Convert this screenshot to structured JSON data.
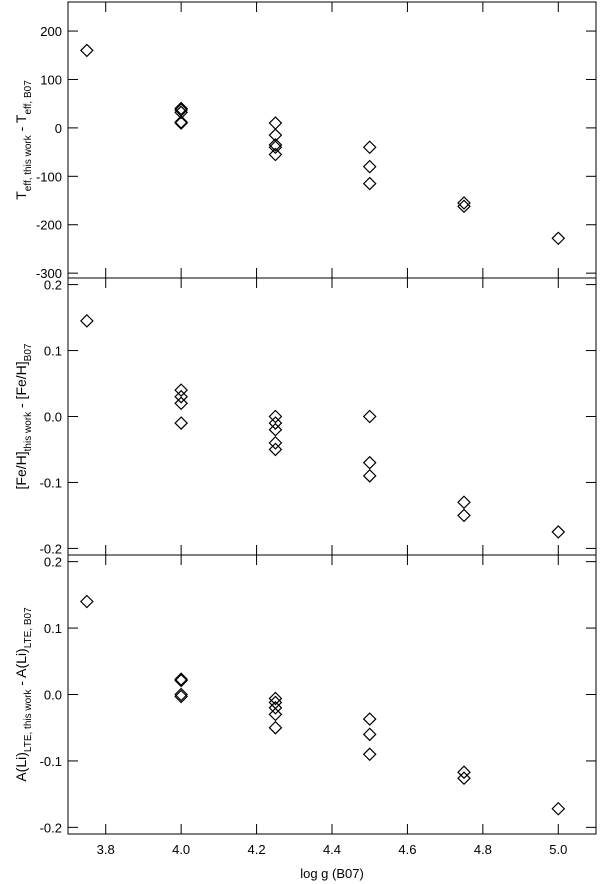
{
  "chart_data": [
    {
      "type": "scatter",
      "ylabel": [
        "T",
        "eff, this work",
        " - T",
        "eff, B07"
      ],
      "x": [
        3.75,
        4.0,
        4.0,
        4.0,
        4.0,
        4.0,
        4.25,
        4.25,
        4.25,
        4.25,
        4.25,
        4.5,
        4.5,
        4.5,
        4.75,
        4.75,
        5.0
      ],
      "values": [
        160,
        40,
        37,
        32,
        12,
        10,
        10,
        -15,
        -35,
        -40,
        -55,
        -40,
        -80,
        -115,
        -155,
        -162,
        -228
      ],
      "color": "#000000",
      "xlim": [
        3.7,
        5.1
      ],
      "xticks": [
        3.8,
        {
          "value": 4.0,
          "label": "4.0"
        },
        4.2,
        4.4,
        4.6,
        4.8,
        {
          "value": 5.0,
          "label": "5.0"
        }
      ],
      "ylim": [
        -310,
        260
      ],
      "yticks": [
        -300,
        -200,
        -100,
        0,
        100,
        200
      ]
    },
    {
      "type": "scatter",
      "ylabel": [
        "[Fe/H]",
        "this work",
        " - [Fe/H]",
        "B07"
      ],
      "x": [
        3.75,
        4.0,
        4.0,
        4.0,
        4.0,
        4.25,
        4.25,
        4.25,
        4.25,
        4.25,
        4.5,
        4.5,
        4.5,
        4.75,
        4.75,
        5.0
      ],
      "values": [
        0.145,
        0.04,
        0.03,
        0.02,
        -0.01,
        0.0,
        -0.01,
        -0.02,
        -0.04,
        -0.05,
        0.0,
        -0.07,
        -0.09,
        -0.13,
        -0.15,
        -0.175
      ],
      "color": "#000000",
      "xlim": [
        3.7,
        5.1
      ],
      "xticks": [
        3.8,
        {
          "value": 4.0,
          "label": "4.0"
        },
        4.2,
        4.4,
        4.6,
        4.8,
        {
          "value": 5.0,
          "label": "5.0"
        }
      ],
      "ylim": [
        -0.21,
        0.21
      ],
      "yticks": [
        -0.2,
        -0.1,
        {
          "value": 0,
          "label": "0.0"
        },
        0.1,
        0.2
      ]
    },
    {
      "type": "scatter",
      "ylabel": [
        "A(Li)",
        "LTE, this work",
        " - A(Li)",
        "LTE, B07"
      ],
      "xlabel": "log g (B07)",
      "x": [
        3.75,
        4.0,
        4.0,
        4.0,
        4.0,
        4.25,
        4.25,
        4.25,
        4.25,
        4.25,
        4.5,
        4.5,
        4.5,
        4.75,
        4.75,
        5.0
      ],
      "values": [
        0.14,
        0.023,
        0.021,
        0.0,
        -0.003,
        -0.006,
        -0.012,
        -0.02,
        -0.03,
        -0.05,
        -0.037,
        -0.06,
        -0.09,
        -0.117,
        -0.126,
        -0.172
      ],
      "color": "#000000",
      "xlim": [
        3.7,
        5.1
      ],
      "xticks": [
        3.8,
        {
          "value": 4.0,
          "label": "4.0"
        },
        4.2,
        4.4,
        4.6,
        4.8,
        {
          "value": 5.0,
          "label": "5.0"
        }
      ],
      "ylim": [
        -0.21,
        0.21
      ],
      "yticks": [
        -0.2,
        -0.1,
        {
          "value": 0,
          "label": "0.0"
        },
        0.1,
        0.2
      ]
    }
  ]
}
